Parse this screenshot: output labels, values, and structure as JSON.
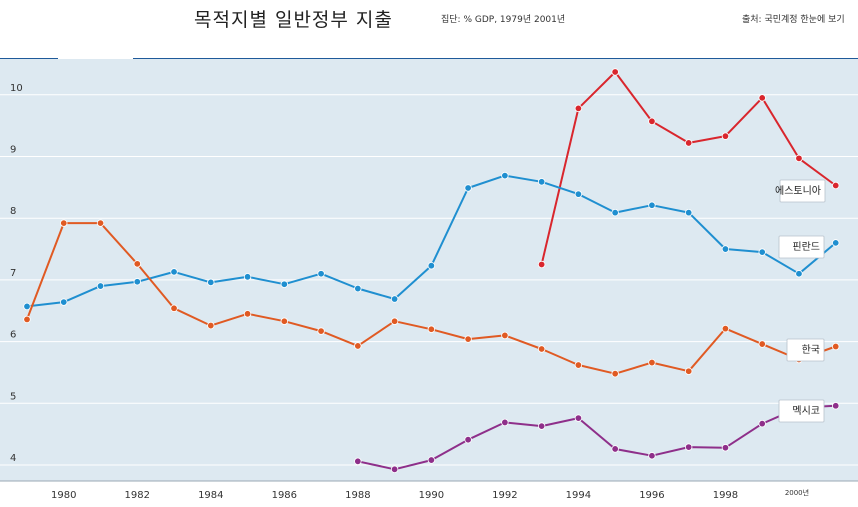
{
  "header": {
    "title": "목적지별 일반정부 지출",
    "subtitle": "집단: % GDP, 1979년 2001년",
    "source": "출처: 국민계정 한눈에 보기"
  },
  "colors": {
    "plot_bg": "#dde9f1",
    "grid": "#ffffff",
    "estonia": "#d9262d",
    "finland": "#1f8fd0",
    "korea": "#e05a23",
    "mexico": "#8e2f8a"
  },
  "chart_data": {
    "type": "line",
    "title": "목적지별 일반정부 지출",
    "xlabel": "",
    "ylabel": "",
    "xlim": [
      1978.9,
      2001.6
    ],
    "ylim": [
      3.8,
      11.2
    ],
    "yticks": [
      4,
      5,
      6,
      7,
      8,
      9,
      10
    ],
    "xticks": [
      1980,
      1982,
      1984,
      1986,
      1988,
      1990,
      1992,
      1994,
      1996,
      1998
    ],
    "last_tick": {
      "label": "2000",
      "suffix": "년",
      "value": 2000
    },
    "legend": "inline labels at series ends",
    "series": [
      {
        "key": "estonia",
        "name": "에스토니아",
        "x": [
          1993,
          1994,
          1995,
          1996,
          1997,
          1998,
          1999,
          2000,
          2001
        ],
        "values": [
          7.25,
          9.78,
          10.37,
          9.57,
          9.22,
          9.33,
          9.95,
          8.97,
          8.53
        ]
      },
      {
        "key": "finland",
        "name": "핀란드",
        "x": [
          1979,
          1980,
          1981,
          1982,
          1983,
          1984,
          1985,
          1986,
          1987,
          1988,
          1989,
          1990,
          1991,
          1992,
          1993,
          1994,
          1995,
          1996,
          1997,
          1998,
          1999,
          2000,
          2001
        ],
        "values": [
          6.57,
          6.64,
          6.9,
          6.97,
          7.13,
          6.96,
          7.05,
          6.93,
          7.1,
          6.86,
          6.69,
          7.23,
          8.49,
          8.69,
          8.59,
          8.39,
          8.09,
          8.21,
          8.09,
          7.5,
          7.45,
          7.1,
          7.6
        ]
      },
      {
        "key": "korea",
        "name": "한국",
        "x": [
          1979,
          1980,
          1981,
          1982,
          1983,
          1984,
          1985,
          1986,
          1987,
          1988,
          1989,
          1990,
          1991,
          1992,
          1993,
          1994,
          1995,
          1996,
          1997,
          1998,
          1999,
          2000,
          2001
        ],
        "values": [
          6.36,
          7.92,
          7.92,
          7.26,
          6.54,
          6.26,
          6.45,
          6.33,
          6.17,
          5.93,
          6.33,
          6.2,
          6.04,
          6.1,
          5.88,
          5.62,
          5.48,
          5.66,
          5.52,
          6.21,
          5.96,
          5.71,
          5.92
        ]
      },
      {
        "key": "mexico",
        "name": "멕시코",
        "x": [
          1988,
          1989,
          1990,
          1991,
          1992,
          1993,
          1994,
          1995,
          1996,
          1997,
          1998,
          1999,
          2000,
          2001
        ],
        "values": [
          4.06,
          3.93,
          4.08,
          4.41,
          4.69,
          4.63,
          4.76,
          4.26,
          4.15,
          4.29,
          4.28,
          4.67,
          4.93,
          4.96
        ]
      }
    ]
  }
}
